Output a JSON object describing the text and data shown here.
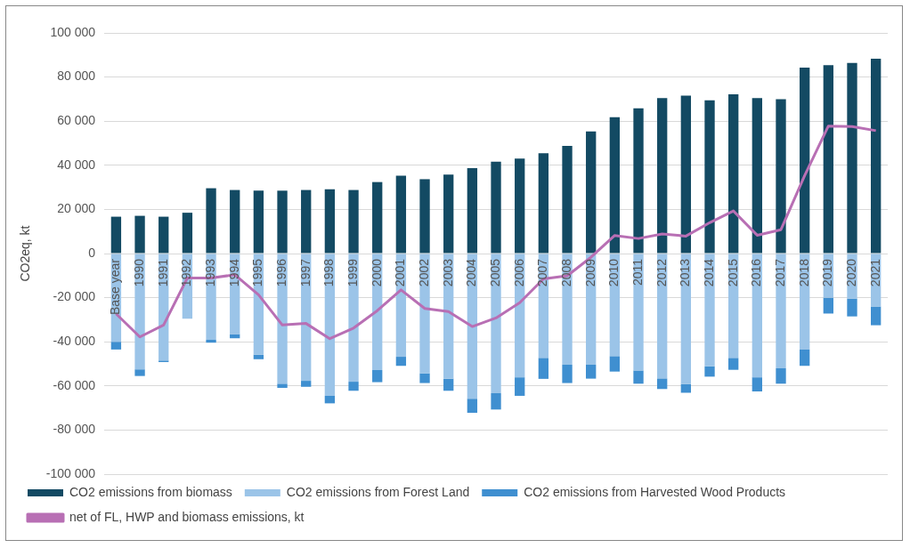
{
  "chart_data": {
    "type": "bar",
    "stacked": true,
    "ylabel": "CO2eq, kt",
    "categories": [
      "Base year",
      "1990",
      "1991",
      "1992",
      "1993",
      "1994",
      "1995",
      "1996",
      "1997",
      "1998",
      "1999",
      "2000",
      "2001",
      "2002",
      "2003",
      "2004",
      "2005",
      "2006",
      "2007",
      "2008",
      "2009",
      "2010",
      "2011",
      "2012",
      "2013",
      "2014",
      "2015",
      "2016",
      "2017",
      "2018",
      "2019",
      "2020",
      "2021"
    ],
    "series": [
      {
        "name": "CO2 emissions from biomass",
        "color": "#134a63",
        "values": [
          16700,
          17100,
          16700,
          18500,
          29600,
          28800,
          28500,
          28500,
          28800,
          29100,
          28800,
          32400,
          35300,
          33700,
          35800,
          38700,
          41600,
          43000,
          45500,
          48800,
          55300,
          61800,
          65800,
          70500,
          71600,
          69500,
          72200,
          70500,
          70000,
          84300,
          85400,
          86400,
          88300
        ]
      },
      {
        "name": "CO2 emissions from Forest Land",
        "color": "#9bc4e8",
        "values": [
          -40000,
          -52500,
          -48500,
          -29500,
          -39100,
          -36500,
          -45800,
          -59000,
          -57700,
          -64500,
          -58100,
          -52800,
          -46800,
          -54300,
          -56700,
          -65800,
          -63300,
          -56100,
          -47300,
          -50400,
          -50400,
          -46500,
          -53000,
          -56600,
          -59100,
          -51100,
          -47300,
          -56100,
          -52000,
          -43500,
          -20000,
          -20400,
          -24000
        ]
      },
      {
        "name": "CO2 emissions from Harvested Wood Products",
        "color": "#3f8fd0",
        "values": [
          -3500,
          -3000,
          -700,
          0,
          -1300,
          -1900,
          -2100,
          -1900,
          -2700,
          -3400,
          -4100,
          -5500,
          -4100,
          -4400,
          -5500,
          -6400,
          -7400,
          -8400,
          -9500,
          -8300,
          -6300,
          -7000,
          -6000,
          -4800,
          -4000,
          -4700,
          -5400,
          -6400,
          -7000,
          -7400,
          -7200,
          -8100,
          -8500
        ]
      },
      {
        "name": "net of FL, HWP and biomass emissions, kt",
        "type": "line",
        "color": "#b86fb4",
        "values": [
          -27300,
          -37800,
          -32400,
          -11100,
          -11100,
          -9600,
          -18700,
          -32400,
          -31700,
          -38600,
          -33800,
          -25900,
          -16500,
          -24900,
          -26300,
          -33100,
          -29200,
          -22300,
          -11500,
          -10100,
          -1700,
          8200,
          6800,
          8900,
          7900,
          14000,
          19300,
          8300,
          10800,
          35300,
          57800,
          57600,
          55700
        ]
      }
    ],
    "ylim": [
      -100000,
      100000
    ],
    "yticks": [
      {
        "value": -100000,
        "label": "-100 000"
      },
      {
        "value": -80000,
        "label": "-80 000"
      },
      {
        "value": -60000,
        "label": "-60 000"
      },
      {
        "value": -40000,
        "label": "-40 000"
      },
      {
        "value": -20000,
        "label": "-20 000"
      },
      {
        "value": 0,
        "label": "0"
      },
      {
        "value": 20000,
        "label": "20 000"
      },
      {
        "value": 40000,
        "label": "40 000"
      },
      {
        "value": 60000,
        "label": "60 000"
      },
      {
        "value": 80000,
        "label": "80 000"
      },
      {
        "value": 100000,
        "label": "100 000"
      }
    ],
    "grid": "y",
    "legend": "bottom",
    "marker": "none",
    "line_style": "solid"
  }
}
